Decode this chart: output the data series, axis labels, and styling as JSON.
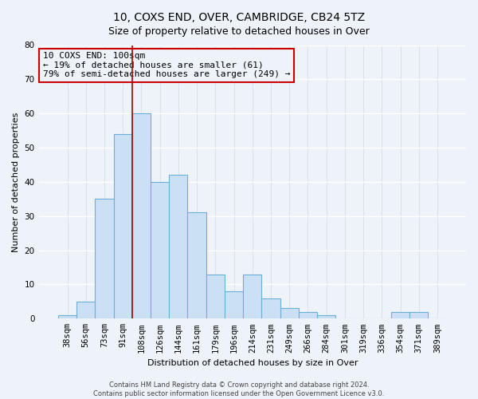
{
  "title": "10, COXS END, OVER, CAMBRIDGE, CB24 5TZ",
  "subtitle": "Size of property relative to detached houses in Over",
  "xlabel": "Distribution of detached houses by size in Over",
  "ylabel": "Number of detached properties",
  "bar_labels": [
    "38sqm",
    "56sqm",
    "73sqm",
    "91sqm",
    "108sqm",
    "126sqm",
    "144sqm",
    "161sqm",
    "179sqm",
    "196sqm",
    "214sqm",
    "231sqm",
    "249sqm",
    "266sqm",
    "284sqm",
    "301sqm",
    "319sqm",
    "336sqm",
    "354sqm",
    "371sqm",
    "389sqm"
  ],
  "bar_values": [
    1,
    5,
    35,
    54,
    60,
    40,
    42,
    31,
    13,
    8,
    13,
    6,
    3,
    2,
    1,
    0,
    0,
    0,
    2,
    2,
    0
  ],
  "bar_color": "#cce0f5",
  "bar_edgecolor": "#6baed6",
  "ylim": [
    0,
    80
  ],
  "yticks": [
    0,
    10,
    20,
    30,
    40,
    50,
    60,
    70,
    80
  ],
  "property_line_color": "#aa0000",
  "annotation_title": "10 COXS END: 100sqm",
  "annotation_line1": "← 19% of detached houses are smaller (61)",
  "annotation_line2": "79% of semi-detached houses are larger (249) →",
  "annotation_box_color": "#cc0000",
  "footer_line1": "Contains HM Land Registry data © Crown copyright and database right 2024.",
  "footer_line2": "Contains public sector information licensed under the Open Government Licence v3.0.",
  "background_color": "#eef2f9",
  "grid_color": "#d8dce8",
  "title_fontsize": 10,
  "subtitle_fontsize": 9,
  "axis_label_fontsize": 8,
  "tick_fontsize": 7.5,
  "annotation_fontsize": 8,
  "footer_fontsize": 6
}
